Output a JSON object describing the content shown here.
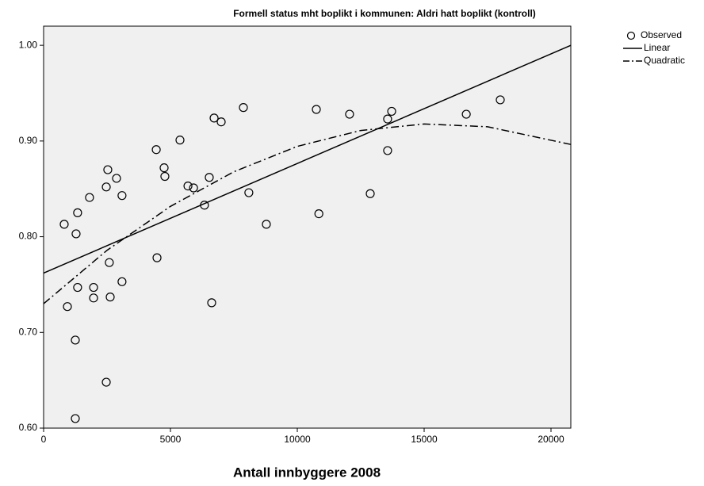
{
  "chart_data": {
    "type": "scatter",
    "title": "Formell status mht boplikt i kommunen: Aldri hatt boplikt (kontroll)",
    "x_label": "Antall innbyggere 2008",
    "xlim": [
      0,
      20781
    ],
    "ylim": [
      0.6,
      1.02
    ],
    "xticks": [
      0,
      5000,
      10000,
      15000,
      20000
    ],
    "yticks": [
      {
        "value": 0.6,
        "label": "0.60"
      },
      {
        "value": 0.7,
        "label": "0.70"
      },
      {
        "value": 0.8,
        "label": "0.80"
      },
      {
        "value": 0.9,
        "label": "0.90"
      },
      {
        "value": 1.0,
        "label": "1.00"
      }
    ],
    "series": [
      {
        "name": "Observed",
        "kind": "points",
        "color": "#000000",
        "x": [
          812,
          938,
          1250,
          1250,
          1280,
          1340,
          1340,
          1810,
          1970,
          1970,
          2470,
          2470,
          2530,
          2590,
          2625,
          2875,
          3090,
          3090,
          4440,
          4470,
          4750,
          4780,
          5375,
          5690,
          5910,
          6340,
          6530,
          6625,
          6720,
          7000,
          7875,
          8090,
          8780,
          10750,
          10850,
          12060,
          12875,
          13560,
          13560,
          13720,
          16660,
          18000
        ],
        "values": [
          0.813,
          0.727,
          0.692,
          0.61,
          0.803,
          0.825,
          0.747,
          0.841,
          0.747,
          0.736,
          0.648,
          0.852,
          0.87,
          0.773,
          0.737,
          0.861,
          0.843,
          0.753,
          0.891,
          0.778,
          0.872,
          0.863,
          0.901,
          0.853,
          0.851,
          0.833,
          0.862,
          0.731,
          0.924,
          0.92,
          0.935,
          0.846,
          0.813,
          0.933,
          0.824,
          0.928,
          0.845,
          0.923,
          0.89,
          0.931,
          0.928,
          0.943
        ]
      },
      {
        "name": "Linear",
        "kind": "solid",
        "color": "#000000",
        "x": [
          0,
          20781
        ],
        "values": [
          0.762,
          1.0
        ]
      },
      {
        "name": "Quadratic",
        "kind": "dashdot",
        "color": "#000000",
        "x": [
          0,
          2500,
          5000,
          7500,
          10000,
          12500,
          15000,
          17500,
          20781
        ],
        "values": [
          0.73,
          0.7858,
          0.8317,
          0.8679,
          0.8944,
          0.911,
          0.9178,
          0.9149,
          0.8964
        ]
      }
    ]
  }
}
